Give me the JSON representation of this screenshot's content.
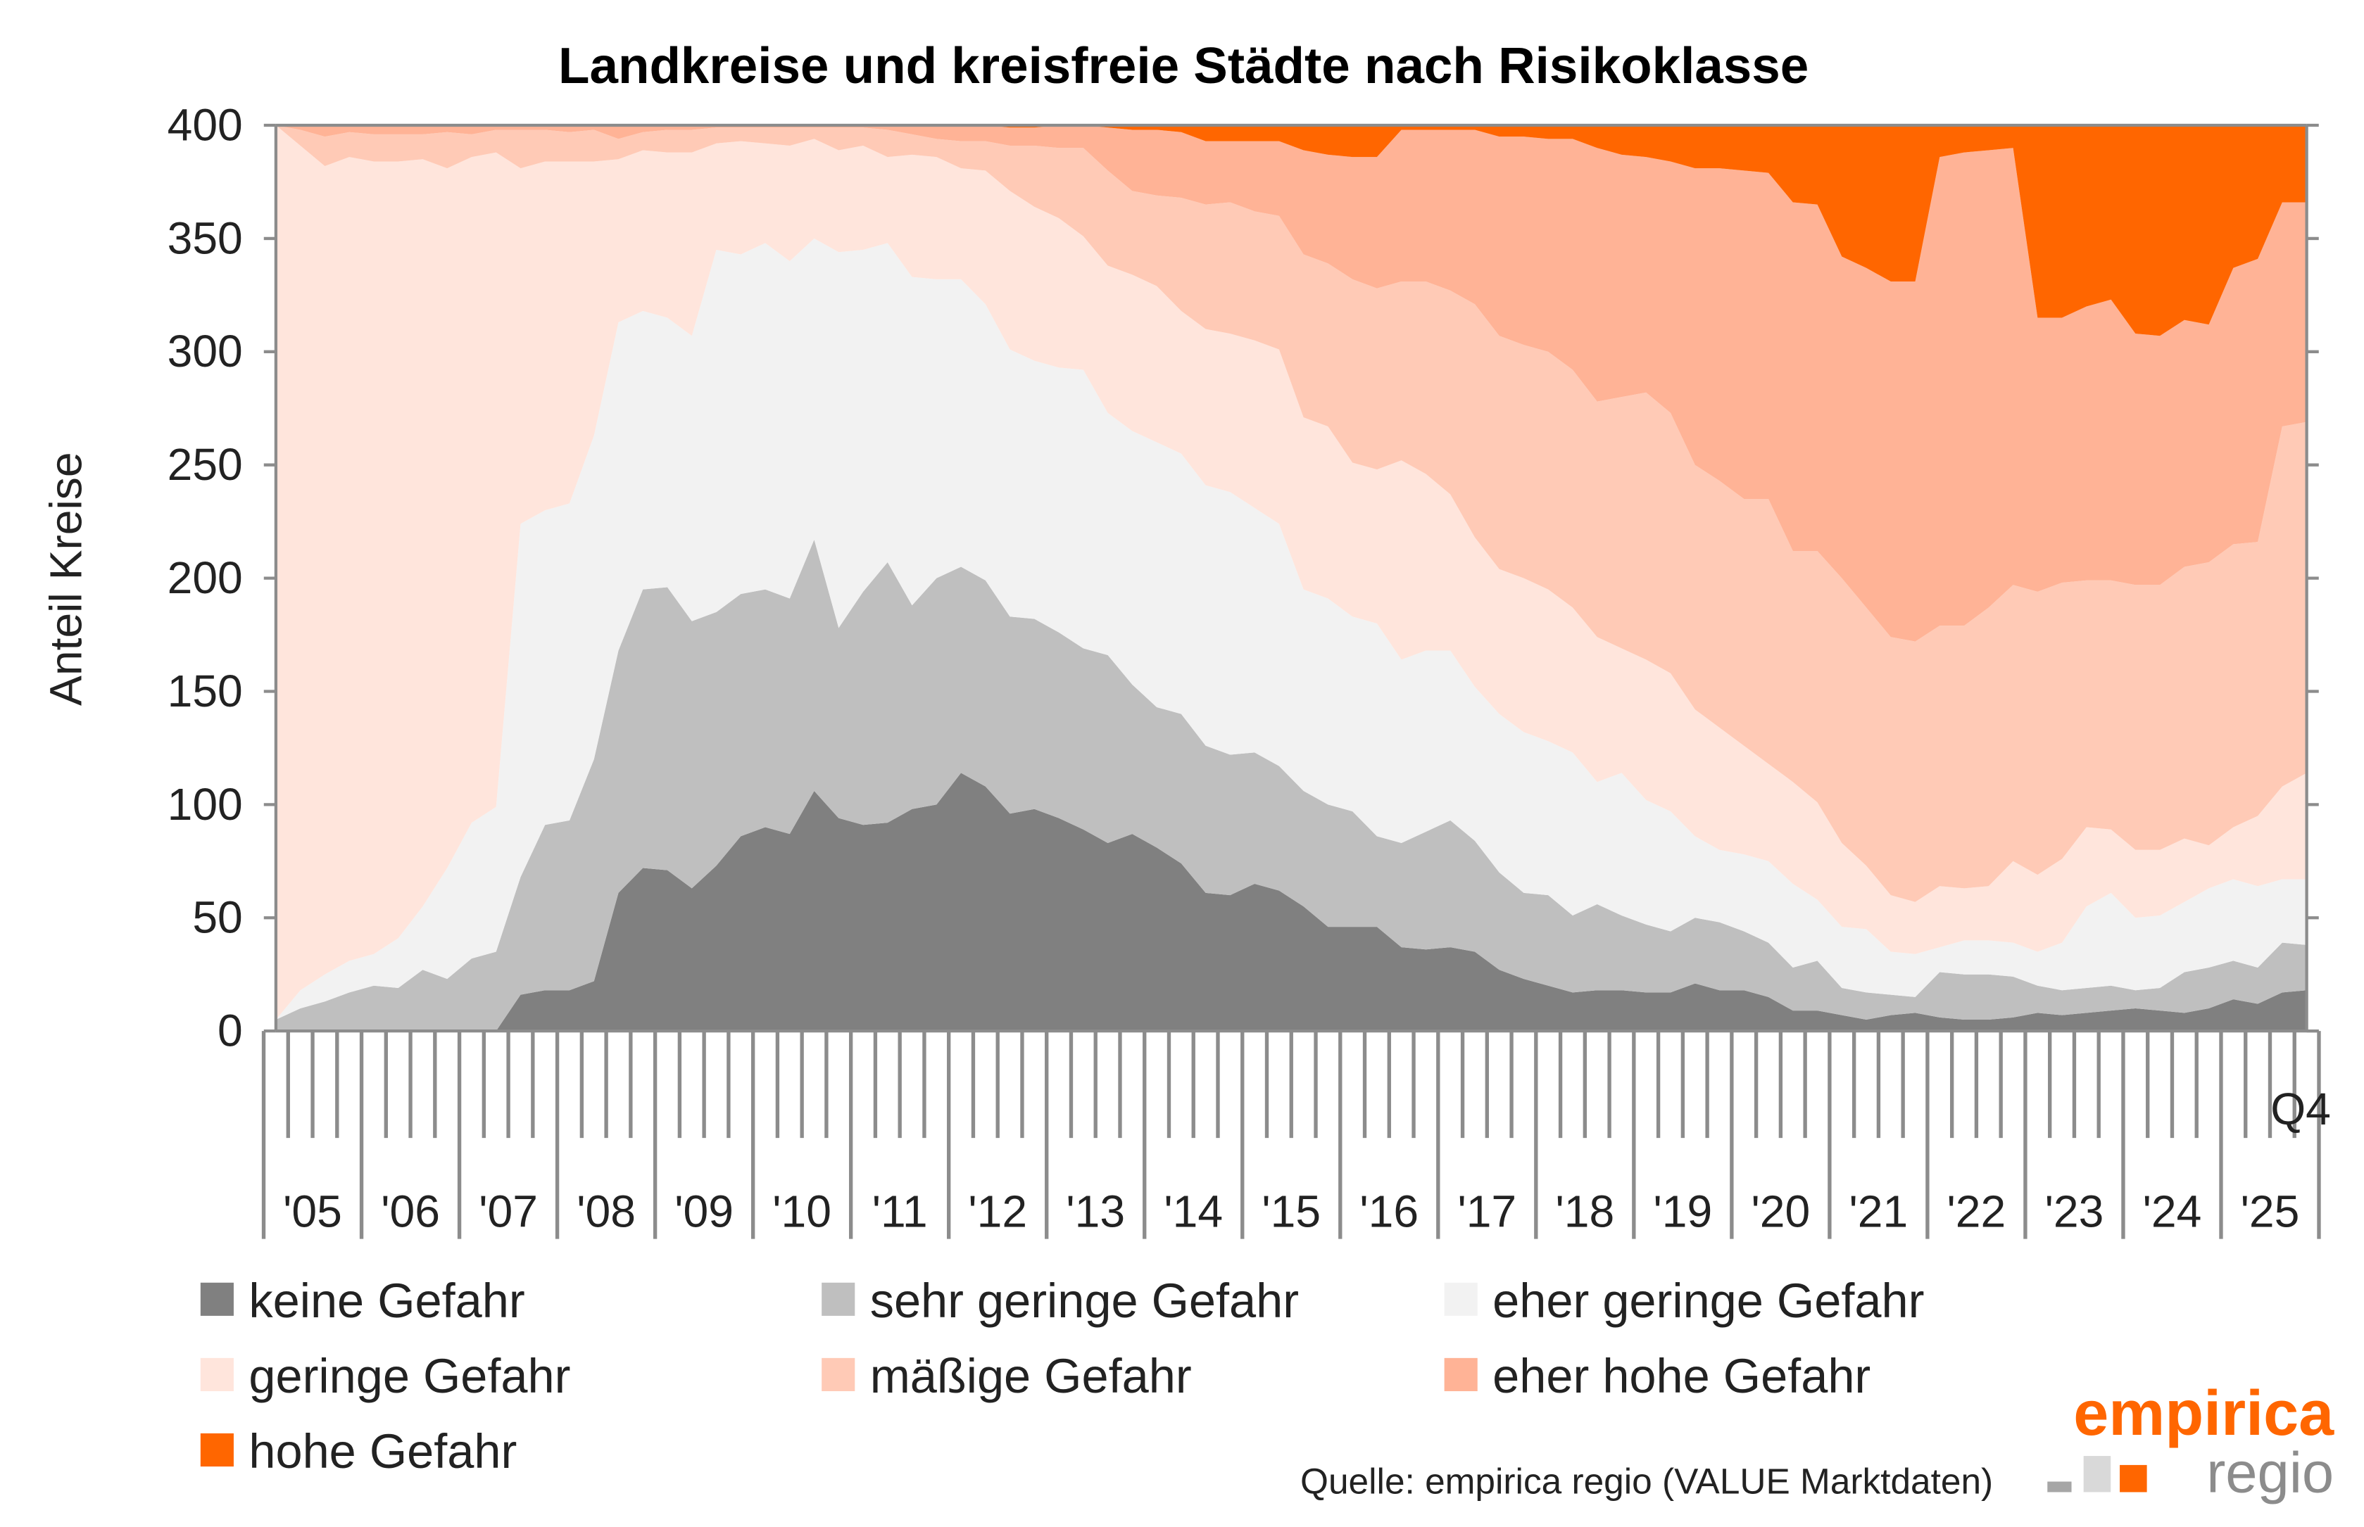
{
  "chart_data": {
    "type": "area",
    "stacked": true,
    "title": "Landkreise und kreisfreie Städte nach Risikoklasse",
    "ylabel": "Anteil Kreise",
    "ylim": [
      0,
      400
    ],
    "yticks": [
      0,
      50,
      100,
      150,
      200,
      250,
      300,
      350,
      400
    ],
    "x_start": "2005 Q1",
    "x_end": "2025 Q4",
    "frequency": "quarterly",
    "year_labels": [
      "'05",
      "'06",
      "'07",
      "'08",
      "'09",
      "'10",
      "'11",
      "'12",
      "'13",
      "'14",
      "'15",
      "'16",
      "'17",
      "'18",
      "'19",
      "'20",
      "'21",
      "'22",
      "'23",
      "'24",
      "'25"
    ],
    "end_label": "Q4",
    "legend_position": "bottom",
    "grid": false,
    "series": [
      {
        "name": "keine Gefahr",
        "color": "#808080",
        "values": [
          0,
          0,
          0,
          0,
          0,
          0,
          0,
          0,
          0,
          0,
          16,
          18,
          18,
          22,
          61,
          72,
          71,
          63,
          73,
          86,
          90,
          87,
          106,
          94,
          91,
          92,
          98,
          100,
          114,
          108,
          96,
          98,
          94,
          89,
          83,
          87,
          81,
          74,
          61,
          60,
          65,
          62,
          55,
          46,
          46,
          46,
          37,
          36,
          37,
          35,
          27,
          23,
          20,
          17,
          18,
          18,
          17,
          17,
          21,
          18,
          18,
          15,
          9,
          9,
          7,
          5,
          7,
          8,
          6,
          5,
          5,
          6,
          8,
          7,
          8,
          9,
          10,
          9,
          8,
          10,
          14,
          12,
          17,
          18
        ]
      },
      {
        "name": "sehr geringe Gefahr",
        "color": "#bfbfbf",
        "values": [
          5,
          10,
          13,
          17,
          20,
          19,
          27,
          23,
          32,
          35,
          52,
          73,
          75,
          98,
          107,
          123,
          125,
          118,
          112,
          107,
          105,
          104,
          111,
          84,
          103,
          115,
          90,
          100,
          91,
          91,
          87,
          84,
          82,
          80,
          83,
          66,
          62,
          66,
          65,
          62,
          58,
          55,
          51,
          54,
          51,
          40,
          46,
          52,
          56,
          49,
          43,
          38,
          40,
          34,
          38,
          33,
          30,
          27,
          29,
          30,
          26,
          24,
          19,
          22,
          12,
          12,
          9,
          7,
          20,
          20,
          20,
          18,
          12,
          11,
          11,
          11,
          8,
          10,
          18,
          18,
          17,
          16,
          22,
          20
        ]
      },
      {
        "name": "eher geringe Gefahr",
        "color": "#f2f2f2",
        "values": [
          0,
          8,
          12,
          14,
          14,
          22,
          28,
          49,
          60,
          64,
          156,
          139,
          140,
          143,
          145,
          123,
          119,
          126,
          160,
          150,
          153,
          149,
          133,
          166,
          151,
          141,
          145,
          132,
          127,
          122,
          118,
          114,
          117,
          123,
          107,
          112,
          117,
          115,
          115,
          116,
          108,
          107,
          89,
          91,
          86,
          94,
          81,
          80,
          75,
          68,
          70,
          71,
          68,
          72,
          54,
          63,
          55,
          53,
          36,
          32,
          34,
          36,
          37,
          27,
          27,
          28,
          19,
          19,
          11,
          15,
          15,
          15,
          15,
          21,
          36,
          41,
          32,
          32,
          31,
          35,
          36,
          36,
          28,
          29
        ]
      },
      {
        "name": "geringe Gefahr",
        "color": "#ffe5dc",
        "values": [
          395,
          373,
          357,
          355,
          350,
          343,
          330,
          309,
          294,
          289,
          157,
          154,
          151,
          121,
          72,
          71,
          73,
          81,
          47,
          50,
          44,
          51,
          44,
          45,
          46,
          38,
          54,
          54,
          49,
          59,
          70,
          68,
          66,
          59,
          65,
          69,
          69,
          63,
          69,
          70,
          74,
          77,
          76,
          76,
          68,
          68,
          88,
          78,
          69,
          66,
          64,
          68,
          67,
          64,
          64,
          55,
          62,
          61,
          56,
          54,
          48,
          43,
          45,
          43,
          37,
          28,
          25,
          23,
          27,
          23,
          24,
          36,
          34,
          37,
          35,
          28,
          30,
          29,
          28,
          19,
          23,
          31,
          41,
          47
        ]
      },
      {
        "name": "mäßige Gefahr",
        "color": "#ffcab6",
        "values": [
          0,
          7,
          13,
          11,
          12,
          12,
          11,
          16,
          10,
          10,
          17,
          14,
          13,
          14,
          9,
          8,
          10,
          10,
          7,
          6,
          7,
          8,
          5,
          10,
          8,
          12,
          9,
          8,
          12,
          13,
          20,
          27,
          31,
          39,
          42,
          37,
          40,
          50,
          55,
          58,
          57,
          59,
          72,
          72,
          81,
          80,
          79,
          85,
          90,
          103,
          103,
          103,
          105,
          105,
          104,
          111,
          118,
          115,
          108,
          109,
          109,
          117,
          102,
          111,
          117,
          114,
          114,
          115,
          115,
          116,
          123,
          122,
          125,
          122,
          109,
          110,
          117,
          117,
          120,
          125,
          125,
          121,
          159,
          155
        ]
      },
      {
        "name": "eher hohe Gefahr",
        "color": "#ffb396",
        "values": [
          0,
          2,
          5,
          3,
          4,
          4,
          4,
          3,
          4,
          2,
          2,
          2,
          3,
          2,
          6,
          3,
          2,
          2,
          1,
          1,
          1,
          1,
          1,
          1,
          1,
          2,
          4,
          6,
          7,
          7,
          8,
          8,
          10,
          10,
          19,
          27,
          29,
          29,
          28,
          27,
          31,
          33,
          46,
          48,
          54,
          58,
          67,
          67,
          71,
          77,
          88,
          92,
          94,
          102,
          112,
          107,
          104,
          111,
          131,
          138,
          145,
          144,
          154,
          153,
          142,
          150,
          157,
          159,
          207,
          209,
          202,
          193,
          121,
          117,
          121,
          124,
          111,
          110,
          109,
          105,
          122,
          125,
          99,
          97
        ]
      },
      {
        "name": "hohe Gefahr",
        "color": "#ff6600",
        "values": [
          0,
          0,
          0,
          0,
          0,
          0,
          0,
          0,
          0,
          0,
          0,
          0,
          0,
          0,
          0,
          0,
          0,
          0,
          0,
          0,
          0,
          0,
          0,
          0,
          0,
          0,
          0,
          0,
          0,
          0,
          1,
          1,
          0,
          0,
          1,
          2,
          2,
          3,
          7,
          7,
          7,
          7,
          11,
          13,
          14,
          14,
          2,
          2,
          2,
          2,
          5,
          5,
          6,
          6,
          10,
          13,
          14,
          16,
          19,
          19,
          20,
          21,
          34,
          35,
          58,
          63,
          69,
          69,
          14,
          12,
          11,
          10,
          85,
          85,
          80,
          77,
          92,
          93,
          86,
          88,
          63,
          59,
          34,
          34
        ]
      }
    ]
  },
  "source": "Quelle: empirica regio (VALUE Marktdaten)",
  "logo": {
    "word1": "empirica",
    "word2": "regio"
  },
  "colors": {
    "axis": "#8c8c8c",
    "brand": "#ff6600"
  }
}
